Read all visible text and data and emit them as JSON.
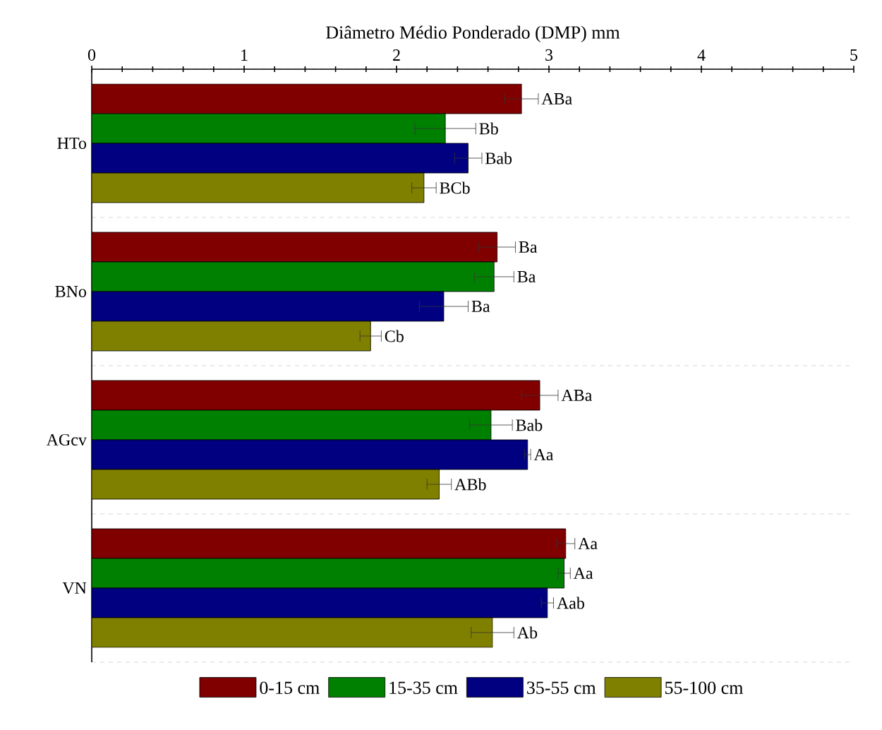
{
  "chart_data": {
    "type": "bar",
    "orientation": "horizontal",
    "xlabel": "Diâmetro Médio Ponderado (DMP) mm",
    "categories": [
      "HTo",
      "BNo",
      "AGcv",
      "VN"
    ],
    "series": [
      {
        "name": "0-15 cm",
        "color": "#800000",
        "values": [
          2.82,
          2.66,
          2.94,
          3.11
        ],
        "errors": [
          0.11,
          0.12,
          0.12,
          0.06
        ],
        "value_labels": [
          "ABa",
          "Ba",
          "ABa",
          "Aa"
        ]
      },
      {
        "name": "15-35 cm",
        "color": "#008000",
        "values": [
          2.32,
          2.64,
          2.62,
          3.1
        ],
        "errors": [
          0.2,
          0.13,
          0.14,
          0.04
        ],
        "value_labels": [
          "Bb",
          "Ba",
          "Bab",
          "Aa"
        ]
      },
      {
        "name": "35-55 cm",
        "color": "#000080",
        "values": [
          2.47,
          2.31,
          2.86,
          2.99
        ],
        "errors": [
          0.09,
          0.16,
          0.02,
          0.04
        ],
        "value_labels": [
          "Bab",
          "Ba",
          "Aa",
          "Aab"
        ]
      },
      {
        "name": "55-100 cm",
        "color": "#808000",
        "values": [
          2.18,
          1.83,
          2.28,
          2.63
        ],
        "errors": [
          0.08,
          0.07,
          0.08,
          0.14
        ],
        "value_labels": [
          "BCb",
          "Cb",
          "ABb",
          "Ab"
        ]
      }
    ],
    "xlim": [
      0,
      5
    ],
    "xticks": [
      0,
      1,
      2,
      3,
      4,
      5
    ],
    "grid": "y",
    "legend": "bottom"
  }
}
